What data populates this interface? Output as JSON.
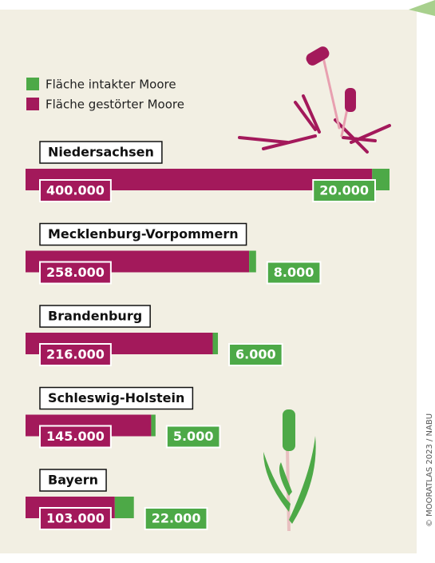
{
  "chart_data": {
    "type": "bar",
    "stacked": true,
    "orientation": "horizontal",
    "categories": [
      "Niedersachsen",
      "Mecklenburg-Vorpommern",
      "Brandenburg",
      "Schleswig-Holstein",
      "Bayern"
    ],
    "series": [
      {
        "name": "Fläche intakter Moore",
        "color": "#4da947",
        "values": [
          20000,
          8000,
          6000,
          5000,
          22000
        ],
        "value_labels": [
          "20.000",
          "8.000",
          "6.000",
          "5.000",
          "22.000"
        ]
      },
      {
        "name": "Fläche gestörter Moore",
        "color": "#a3195b",
        "values": [
          400000,
          258000,
          216000,
          145000,
          103000
        ],
        "value_labels": [
          "400.000",
          "258.000",
          "216.000",
          "145.000",
          "103.000"
        ]
      }
    ],
    "credit": "© MOORATLAS 2023 / NABU"
  }
}
